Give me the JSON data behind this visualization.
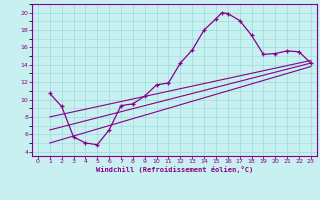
{
  "xlabel": "Windchill (Refroidissement éolien,°C)",
  "bg_color": "#c8f0f0",
  "line_color": "#880088",
  "grid_color": "#99dddd",
  "xlim": [
    -0.5,
    23.5
  ],
  "ylim": [
    3.5,
    21.0
  ],
  "xticks": [
    0,
    1,
    2,
    3,
    4,
    5,
    6,
    7,
    8,
    9,
    10,
    11,
    12,
    13,
    14,
    15,
    16,
    17,
    18,
    19,
    20,
    21,
    22,
    23
  ],
  "yticks": [
    4,
    6,
    8,
    10,
    12,
    14,
    16,
    18,
    20
  ],
  "curve_x": [
    1,
    2,
    3,
    4,
    5,
    6,
    7,
    8,
    9,
    10,
    11,
    12,
    13,
    14,
    15,
    15.5,
    16,
    17,
    18,
    19,
    20,
    21,
    22,
    23
  ],
  "curve_y": [
    10.7,
    9.2,
    5.7,
    5.0,
    4.8,
    6.5,
    9.3,
    9.5,
    10.4,
    11.7,
    11.9,
    14.2,
    15.7,
    18.0,
    19.3,
    20.0,
    19.9,
    19.1,
    17.4,
    15.2,
    15.3,
    15.6,
    15.5,
    14.2
  ],
  "line1_x": [
    1,
    23
  ],
  "line1_y": [
    6.5,
    14.2
  ],
  "line2_x": [
    1,
    23
  ],
  "line2_y": [
    8.0,
    14.5
  ],
  "line3_x": [
    1,
    23
  ],
  "line3_y": [
    5.0,
    13.8
  ]
}
